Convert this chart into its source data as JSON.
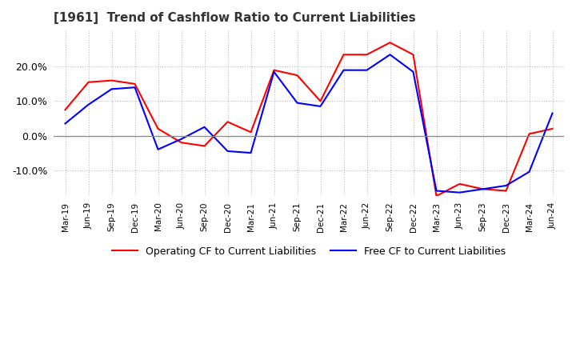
{
  "title": "[1961]  Trend of Cashflow Ratio to Current Liabilities",
  "title_fontsize": 11,
  "x_labels": [
    "Mar-19",
    "Jun-19",
    "Sep-19",
    "Dec-19",
    "Mar-20",
    "Jun-20",
    "Sep-20",
    "Dec-20",
    "Mar-21",
    "Jun-21",
    "Sep-21",
    "Dec-21",
    "Mar-22",
    "Jun-22",
    "Sep-22",
    "Dec-22",
    "Mar-23",
    "Jun-23",
    "Sep-23",
    "Dec-23",
    "Mar-24",
    "Jun-24"
  ],
  "operating_cf": [
    0.075,
    0.155,
    0.16,
    0.15,
    0.02,
    -0.02,
    -0.03,
    0.04,
    0.01,
    0.19,
    0.175,
    0.1,
    0.235,
    0.235,
    0.27,
    0.235,
    -0.175,
    -0.14,
    -0.155,
    -0.16,
    0.005,
    0.02
  ],
  "free_cf": [
    0.035,
    0.09,
    0.135,
    0.14,
    -0.04,
    -0.01,
    0.025,
    -0.045,
    -0.05,
    0.185,
    0.095,
    0.085,
    0.19,
    0.19,
    0.235,
    0.185,
    -0.16,
    -0.165,
    -0.155,
    -0.145,
    -0.105,
    0.065
  ],
  "ylim": [
    -0.175,
    0.305
  ],
  "yticks": [
    -0.1,
    0.0,
    0.1,
    0.2
  ],
  "ytick_labels": [
    "-10.0%",
    "0.0%",
    "10.0%",
    "20.0%"
  ],
  "operating_color": "#FF0000",
  "free_color": "#0000FF",
  "legend_operating": "Operating CF to Current Liabilities",
  "legend_free": "Free CF to Current Liabilities",
  "background_color": "#FFFFFF",
  "grid_color": "#BBBBBB",
  "line_width": 1.5
}
